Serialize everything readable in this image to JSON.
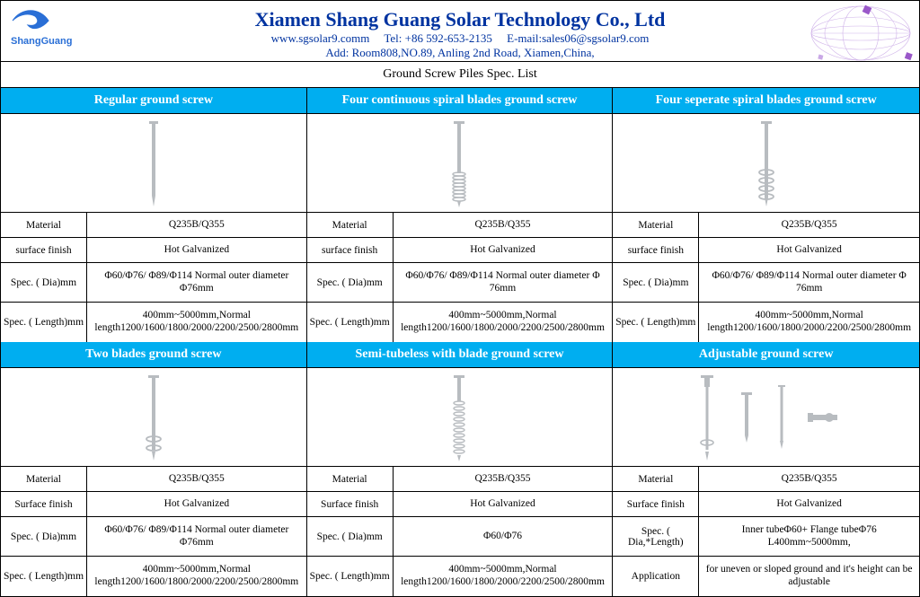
{
  "header": {
    "company": "Xiamen Shang Guang Solar Technology Co., Ltd",
    "website": "www.sgsolar9.comm",
    "tel_label": "Tel:",
    "tel": "+86 592-653-2135",
    "email_label": "E-mail:",
    "email": "sales06@sgsolar9.com",
    "address_label": "Add:",
    "address": "Room808,NO.89, Anling 2nd Road, Xiamen,China,",
    "logo_text": "ShangGuang"
  },
  "list_title": "Ground Screw Piles Spec. List",
  "colors": {
    "header_bg": "#00aef0",
    "header_text": "#ffffff",
    "company_blue": "#0033a0",
    "border": "#000000",
    "screw": "#b8bcc0"
  },
  "row1": [
    {
      "title": "Regular ground screw",
      "screw_type": "regular",
      "specs": [
        {
          "label": "Material",
          "value": "Q235B/Q355"
        },
        {
          "label": "surface finish",
          "value": "Hot Galvanized"
        },
        {
          "label": "Spec. ( Dia)mm",
          "value": "Φ60/Φ76/ Φ89/Φ114  Normal outer diameter Φ76mm"
        },
        {
          "label": "Spec. ( Length)mm",
          "value": "400mm~5000mm,Normal length1200/1600/1800/2000/2200/2500/2800mm"
        }
      ]
    },
    {
      "title": "Four continuous spiral blades ground screw",
      "screw_type": "continuous-spiral",
      "specs": [
        {
          "label": "Material",
          "value": "Q235B/Q355"
        },
        {
          "label": "surface finish",
          "value": "Hot Galvanized"
        },
        {
          "label": "Spec. ( Dia)mm",
          "value": "Φ60/Φ76/ Φ89/Φ114 Normal outer diameter Φ 76mm"
        },
        {
          "label": "Spec. ( Length)mm",
          "value": "400mm~5000mm,Normal length1200/1600/1800/2000/2200/2500/2800mm"
        }
      ]
    },
    {
      "title": "Four seperate spiral blades ground screw",
      "screw_type": "separate-spiral",
      "specs": [
        {
          "label": "Material",
          "value": "Q235B/Q355"
        },
        {
          "label": "surface finish",
          "value": "Hot Galvanized"
        },
        {
          "label": "Spec. ( Dia)mm",
          "value": "Φ60/Φ76/ Φ89/Φ114  Normal outer diameter Φ 76mm"
        },
        {
          "label": "Spec. ( Length)mm",
          "value": "400mm~5000mm,Normal length1200/1600/1800/2000/2200/2500/2800mm"
        }
      ]
    }
  ],
  "row2": [
    {
      "title": "Two blades ground screw",
      "screw_type": "two-blades",
      "specs": [
        {
          "label": "Material",
          "value": "Q235B/Q355"
        },
        {
          "label": "Surface finish",
          "value": "Hot Galvanized"
        },
        {
          "label": "Spec. ( Dia)mm",
          "value": "Φ60/Φ76/ Φ89/Φ114 Normal outer diameter Φ76mm"
        },
        {
          "label": "Spec. ( Length)mm",
          "value": "400mm~5000mm,Normal length1200/1600/1800/2000/2200/2500/2800mm"
        }
      ]
    },
    {
      "title": "Semi-tubeless with blade ground screw",
      "screw_type": "semi-tubeless",
      "specs": [
        {
          "label": "Material",
          "value": "Q235B/Q355"
        },
        {
          "label": "Surface finish",
          "value": "Hot Galvanized"
        },
        {
          "label": "Spec. ( Dia)mm",
          "value": "Φ60/Φ76"
        },
        {
          "label": "Spec. ( Length)mm",
          "value": "400mm~5000mm,Normal length1200/1600/1800/2000/2200/2500/2800mm"
        }
      ]
    },
    {
      "title": "Adjustable ground screw",
      "screw_type": "adjustable",
      "specs": [
        {
          "label": "Material",
          "value": "Q235B/Q355"
        },
        {
          "label": "Surface finish",
          "value": "Hot Galvanized"
        },
        {
          "label": "Spec. ( Dia,*Length)",
          "value": "Inner tubeΦ60+ Flange tubeΦ76 L400mm~5000mm,"
        },
        {
          "label": "Application",
          "value": "for uneven or sloped ground and it's height can be adjustable"
        }
      ]
    }
  ]
}
